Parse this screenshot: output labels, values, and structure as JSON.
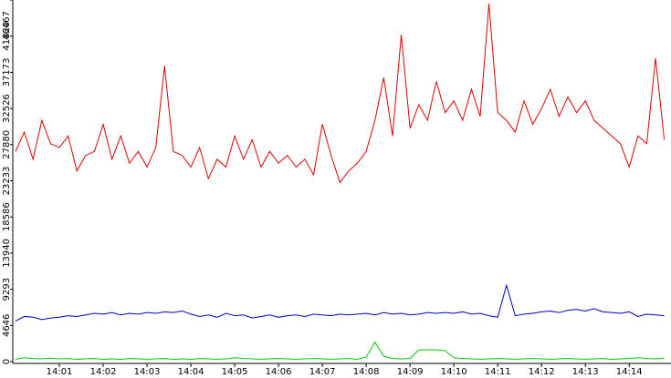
{
  "chart_data": {
    "type": "line",
    "x": [
      0,
      0.2,
      0.4,
      0.6,
      0.8,
      1,
      1.2,
      1.4,
      1.6,
      1.8,
      2,
      2.2,
      2.4,
      2.6,
      2.8,
      3,
      3.2,
      3.4,
      3.6,
      3.8,
      4,
      4.2,
      4.4,
      4.6,
      4.8,
      5,
      5.2,
      5.4,
      5.6,
      5.8,
      6,
      6.2,
      6.4,
      6.6,
      6.8,
      7,
      7.2,
      7.4,
      7.6,
      7.8,
      8,
      8.2,
      8.4,
      8.6,
      8.8,
      9,
      9.2,
      9.4,
      9.6,
      9.8,
      10,
      10.2,
      10.4,
      10.6,
      10.8,
      11,
      11.2,
      11.4,
      11.6,
      11.8,
      12,
      12.2,
      12.4,
      12.6,
      12.8,
      13,
      13.2,
      13.4,
      13.6,
      13.8,
      14,
      14.2,
      14.4,
      14.6,
      14.8
    ],
    "series": [
      {
        "color": "#e00000",
        "values": [
          27000,
          29500,
          26000,
          31000,
          28000,
          27500,
          29000,
          24500,
          26500,
          27000,
          30500,
          26000,
          29000,
          25500,
          27000,
          25000,
          27500,
          38000,
          27000,
          26500,
          25000,
          27500,
          23500,
          26000,
          25000,
          29000,
          26000,
          28500,
          25000,
          27000,
          25500,
          26500,
          25000,
          26000,
          24000,
          30500,
          26500,
          23000,
          24500,
          25500,
          27000,
          31000,
          36500,
          29000,
          42000,
          30000,
          33000,
          31000,
          36000,
          32000,
          33500,
          31000,
          35000,
          31500,
          46000,
          32000,
          31000,
          29500,
          33500,
          30500,
          32500,
          35000,
          31500,
          34000,
          32000,
          33500,
          31000,
          30000,
          29000,
          28000,
          25000,
          29000,
          28000,
          39000,
          28500
        ]
      },
      {
        "color": "#0000c0",
        "values": [
          5200,
          5800,
          5700,
          5400,
          5600,
          5700,
          5900,
          5800,
          6000,
          6200,
          6100,
          6300,
          6000,
          6200,
          6100,
          6300,
          6200,
          6400,
          6300,
          6500,
          6100,
          5800,
          6000,
          5700,
          6200,
          5900,
          6000,
          5600,
          5800,
          6000,
          5700,
          5900,
          6000,
          5800,
          6100,
          6000,
          5900,
          6100,
          6000,
          6100,
          6200,
          6000,
          6300,
          6100,
          6200,
          6000,
          6100,
          6300,
          6200,
          6300,
          6200,
          6400,
          6100,
          6200,
          5900,
          5700,
          9800,
          5900,
          6100,
          6200,
          6400,
          6500,
          6300,
          6600,
          6700,
          6500,
          6800,
          6400,
          6300,
          6200,
          6400,
          5800,
          6100,
          6000,
          5900
        ]
      },
      {
        "color": "#00cc00",
        "values": [
          300,
          500,
          400,
          350,
          450,
          350,
          400,
          300,
          350,
          400,
          300,
          350,
          300,
          400,
          350,
          300,
          350,
          400,
          300,
          350,
          300,
          400,
          350,
          300,
          350,
          500,
          400,
          350,
          300,
          350,
          400,
          350,
          300,
          350,
          400,
          350,
          300,
          350,
          400,
          300,
          600,
          2500,
          700,
          400,
          350,
          400,
          1500,
          1500,
          1500,
          1400,
          500,
          400,
          350,
          300,
          350,
          400,
          350,
          300,
          350,
          400,
          350,
          300,
          350,
          400,
          350,
          300,
          350,
          400,
          300,
          350,
          400,
          500,
          400,
          350,
          450
        ]
      }
    ],
    "xlim": [
      0,
      14.87
    ],
    "xticks": [
      {
        "value": 1,
        "label": "14:01"
      },
      {
        "value": 2,
        "label": "14:02"
      },
      {
        "value": 3,
        "label": "14:03"
      },
      {
        "value": 4,
        "label": "14:04"
      },
      {
        "value": 5,
        "label": "14:05"
      },
      {
        "value": 6,
        "label": "14:06"
      },
      {
        "value": 7,
        "label": "14:07"
      },
      {
        "value": 8,
        "label": "14:08"
      },
      {
        "value": 9,
        "label": "14:09"
      },
      {
        "value": 10,
        "label": "14:10"
      },
      {
        "value": 11,
        "label": "14:11"
      },
      {
        "value": 12,
        "label": "14:12"
      },
      {
        "value": 13,
        "label": "14:13"
      },
      {
        "value": 14,
        "label": "14:14"
      }
    ],
    "ylim": [
      0,
      46467
    ],
    "yticks": [
      0,
      4646,
      9293,
      13940,
      18586,
      23233,
      27880,
      32526,
      37173,
      41820,
      46467
    ]
  }
}
